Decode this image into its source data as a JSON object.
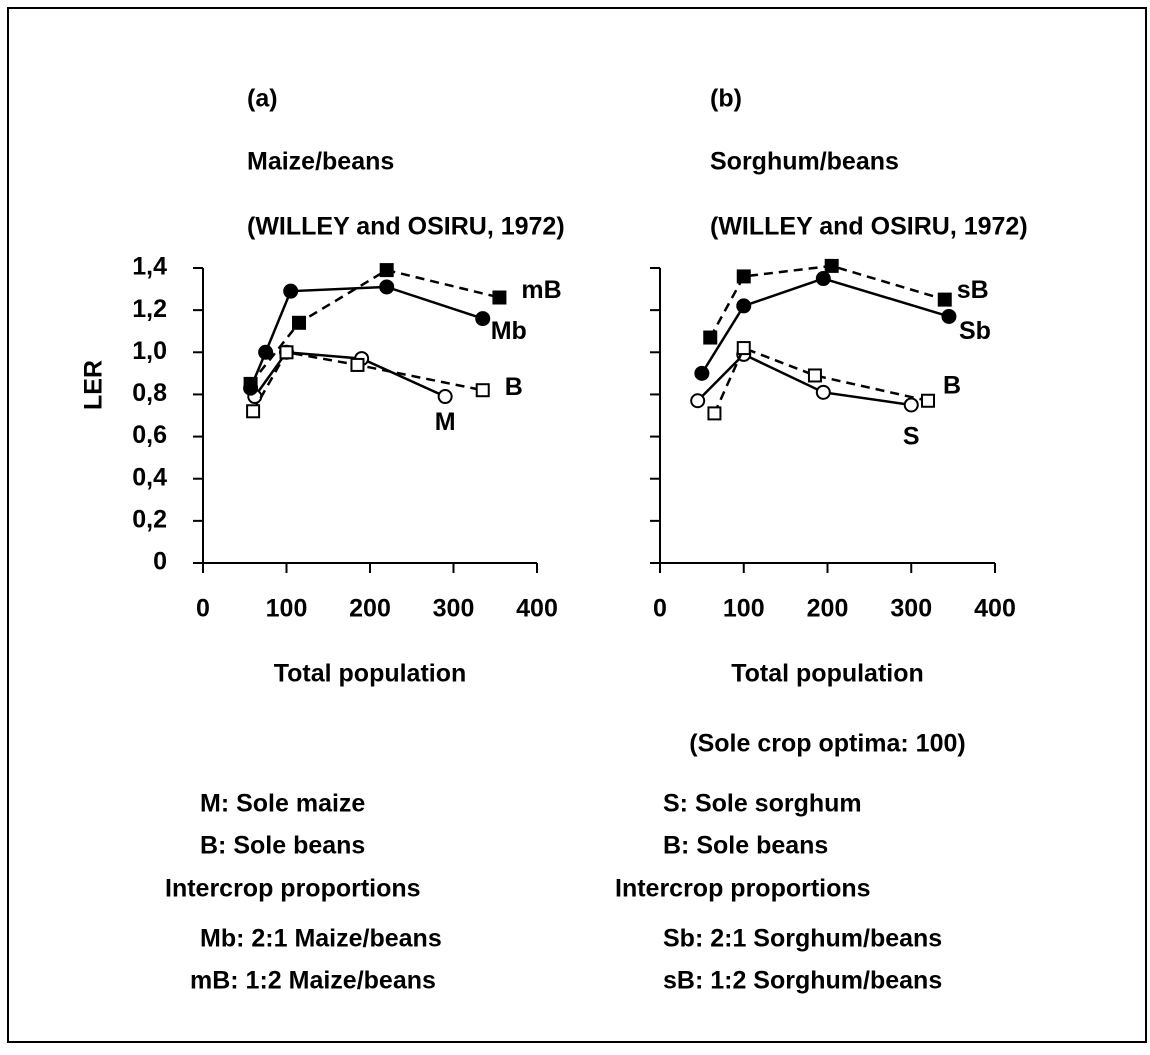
{
  "chart_data": [
    {
      "type": "line",
      "panel": "(a)",
      "title": "Maize/beans",
      "subtitle": "(WILLEY and OSIRU, 1972)",
      "ylabel": "LER",
      "xlabel": "Total population",
      "xlim": [
        0,
        400
      ],
      "ylim": [
        0,
        1.4
      ],
      "xticks": [
        0,
        100,
        200,
        300,
        400
      ],
      "yticks": [
        {
          "value": 0,
          "label": "0"
        },
        {
          "value": 0.2,
          "label": "0,2"
        },
        {
          "value": 0.4,
          "label": "0,4"
        },
        {
          "value": 0.6,
          "label": "0,6"
        },
        {
          "value": 0.8,
          "label": "0,8"
        },
        {
          "value": 1.0,
          "label": "1,0"
        },
        {
          "value": 1.2,
          "label": "1,2"
        },
        {
          "value": 1.4,
          "label": "1,4"
        }
      ],
      "ytick_labels": true,
      "series": [
        {
          "name": "M",
          "color": "#000000",
          "dashed": false,
          "marker": "open-circle",
          "x": [
            62,
            100,
            190,
            290
          ],
          "values": [
            0.79,
            1.0,
            0.97,
            0.79
          ]
        },
        {
          "name": "B",
          "color": "#000000",
          "dashed": true,
          "marker": "open-square",
          "x": [
            60,
            100,
            185,
            335
          ],
          "values": [
            0.72,
            1.0,
            0.94,
            0.82
          ]
        },
        {
          "name": "Mb",
          "color": "#000000",
          "dashed": false,
          "marker": "filled-circle",
          "x": [
            57,
            75,
            105,
            220,
            335
          ],
          "values": [
            0.83,
            1.0,
            1.29,
            1.31,
            1.16
          ]
        },
        {
          "name": "mB",
          "color": "#000000",
          "dashed": true,
          "marker": "filled-square",
          "x": [
            57,
            115,
            220,
            355
          ],
          "values": [
            0.85,
            1.14,
            1.39,
            1.26
          ]
        }
      ],
      "key": [
        "M: Sole maize",
        "B: Sole beans",
        "Intercrop proportions",
        "Mb: 2:1 Maize/beans",
        "mB: 1:2 Maize/beans"
      ]
    },
    {
      "type": "line",
      "panel": "(b)",
      "title": "Sorghum/beans",
      "subtitle": "(WILLEY and OSIRU, 1972)",
      "xlabel": "Total population",
      "note": "(Sole crop optima: 100)",
      "xlim": [
        0,
        400
      ],
      "ylim": [
        0,
        1.4
      ],
      "xticks": [
        0,
        100,
        200,
        300,
        400
      ],
      "yticks": [
        0,
        0.2,
        0.4,
        0.6,
        0.8,
        1.0,
        1.2,
        1.4
      ],
      "ytick_labels": false,
      "series": [
        {
          "name": "S",
          "color": "#000000",
          "dashed": false,
          "marker": "open-circle",
          "x": [
            45,
            100,
            195,
            300
          ],
          "values": [
            0.77,
            0.99,
            0.81,
            0.75
          ]
        },
        {
          "name": "B",
          "color": "#000000",
          "dashed": true,
          "marker": "open-square",
          "x": [
            65,
            100,
            185,
            320
          ],
          "values": [
            0.71,
            1.02,
            0.89,
            0.77
          ]
        },
        {
          "name": "Sb",
          "color": "#000000",
          "dashed": false,
          "marker": "filled-circle",
          "x": [
            50,
            100,
            195,
            345
          ],
          "values": [
            0.9,
            1.22,
            1.35,
            1.17
          ]
        },
        {
          "name": "sB",
          "color": "#000000",
          "dashed": true,
          "marker": "filled-square",
          "x": [
            60,
            100,
            205,
            340
          ],
          "values": [
            1.07,
            1.36,
            1.41,
            1.25
          ]
        }
      ],
      "key": [
        "S: Sole sorghum",
        "B: Sole beans",
        "Intercrop proportions",
        "Sb: 2:1 Sorghum/beans",
        "sB: 1:2 Sorghum/beans"
      ]
    }
  ]
}
